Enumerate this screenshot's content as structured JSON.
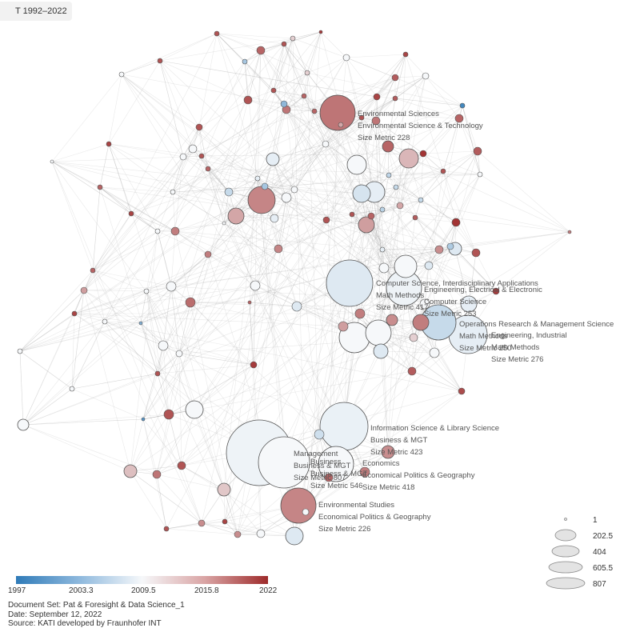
{
  "tab": {
    "label": "T 1992–2022"
  },
  "labels": [
    {
      "lines": [
        "Environmental Sciences",
        "Environmental Science & Technology",
        "Size Metric 228"
      ]
    },
    {
      "lines": [
        "Computer Science, Interdisciplinary Applications",
        "Math Methods",
        "Size Metric 417"
      ]
    },
    {
      "lines": [
        "Engineering, Electrical & Electronic",
        "Computer Science",
        "Size Metric 253"
      ]
    },
    {
      "lines": [
        "Operations Research & Management Science",
        "Math Methods",
        "Size Metric 250"
      ]
    },
    {
      "lines": [
        "Engineering, Industrial",
        "Math Methods",
        "Size Metric 276"
      ]
    },
    {
      "lines": [
        "Information Science & Library Science",
        "Business & MGT",
        "Size Metric 423"
      ]
    },
    {
      "lines": [
        "Management",
        "Business & MGT",
        "Size Metric 807"
      ]
    },
    {
      "lines": [
        "Business",
        "Business & MGT",
        "Size Metric 546"
      ]
    },
    {
      "lines": [
        "Economics",
        "Economical Politics & Geography",
        "Size Metric 418"
      ]
    },
    {
      "lines": [
        "Environmental Studies",
        "Economical Politics & Geography",
        "Size Metric 226"
      ]
    }
  ],
  "size_legend": [
    "1",
    "202.5",
    "404",
    "605.5",
    "807"
  ],
  "color_legend": {
    "ticks": [
      "1997",
      "2003.3",
      "2009.5",
      "2015.8",
      "2022"
    ],
    "colors": [
      "#2f7bb8",
      "#f6f8fa",
      "#9e2b2b"
    ]
  },
  "footer": {
    "doc_set": "Document Set: Pat & Foresight & Data Science_1",
    "date": "Date: September 12, 2022",
    "source": "Source: KATI developed by Fraunhofer INT"
  }
}
